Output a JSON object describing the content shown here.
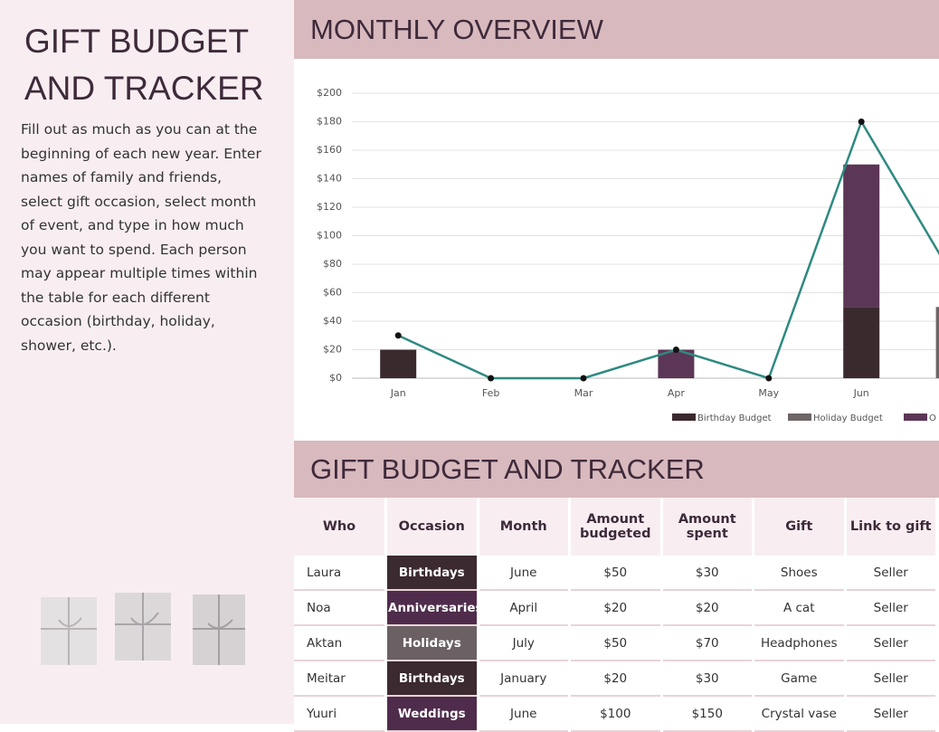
{
  "sidebar": {
    "title": "GIFT BUDGET AND TRACKER",
    "description": "Fill out as much as you can at the beginning of each new year. Enter names of family and friends, select gift occasion, select month of event, and type in how much you want to spend. Each person may appear multiple times within the table for each different occasion (birthday, holiday, shower, etc.)."
  },
  "chart_section": {
    "title": "MONTHLY OVERVIEW"
  },
  "chart_data": {
    "type": "bar",
    "stacked": true,
    "categories": [
      "Jan",
      "Feb",
      "Mar",
      "Apr",
      "May",
      "Jun",
      null
    ],
    "series": [
      {
        "name": "Birthday Budget",
        "color": "#3a2a2e",
        "values": [
          20,
          0,
          0,
          0,
          0,
          50,
          0
        ]
      },
      {
        "name": "Holiday Budget",
        "color": "#6e6567",
        "values": [
          0,
          0,
          0,
          0,
          0,
          0,
          50
        ]
      },
      {
        "name": "O",
        "color": "#5c3656",
        "values": [
          0,
          0,
          0,
          20,
          0,
          100,
          0
        ]
      },
      {
        "type": "line",
        "color": "#2e8a80",
        "values": [
          30,
          0,
          0,
          20,
          0,
          180,
          70
        ]
      }
    ],
    "ylim": [
      0,
      200
    ],
    "yticks": [
      {
        "value": 0,
        "label": "$0"
      },
      {
        "value": 20,
        "label": "$20"
      },
      {
        "value": 40,
        "label": "$40"
      },
      {
        "value": 60,
        "label": "$60"
      },
      {
        "value": 80,
        "label": "$80"
      },
      {
        "value": 100,
        "label": "$100"
      },
      {
        "value": 120,
        "label": "$120"
      },
      {
        "value": 140,
        "label": "$140"
      },
      {
        "value": 160,
        "label": "$160"
      },
      {
        "value": 180,
        "label": "$180"
      },
      {
        "value": 200,
        "label": "$200"
      }
    ],
    "grid": true,
    "legend": "bottom"
  },
  "table_section": {
    "title": "GIFT BUDGET AND TRACKER"
  },
  "table": {
    "columns": [
      "Who",
      "Occasion",
      "Month",
      "Amount budgeted",
      "Amount spent",
      "Gift",
      "Link to gift"
    ],
    "rows": [
      [
        "Laura",
        "Birthdays",
        "June",
        "$50",
        "$30",
        "Shoes",
        "Seller"
      ],
      [
        "Noa",
        "Anniversaries",
        "April",
        "$20",
        "$20",
        "A cat",
        "Seller"
      ],
      [
        "Aktan",
        "Holidays",
        "July",
        "$50",
        "$70",
        "Headphones",
        "Seller"
      ],
      [
        "Meitar",
        "Birthdays",
        "January",
        "$20",
        "$30",
        "Game",
        "Seller"
      ],
      [
        "Yuuri",
        "Weddings",
        "June",
        "$100",
        "$150",
        "Crystal vase",
        "Seller"
      ]
    ]
  }
}
